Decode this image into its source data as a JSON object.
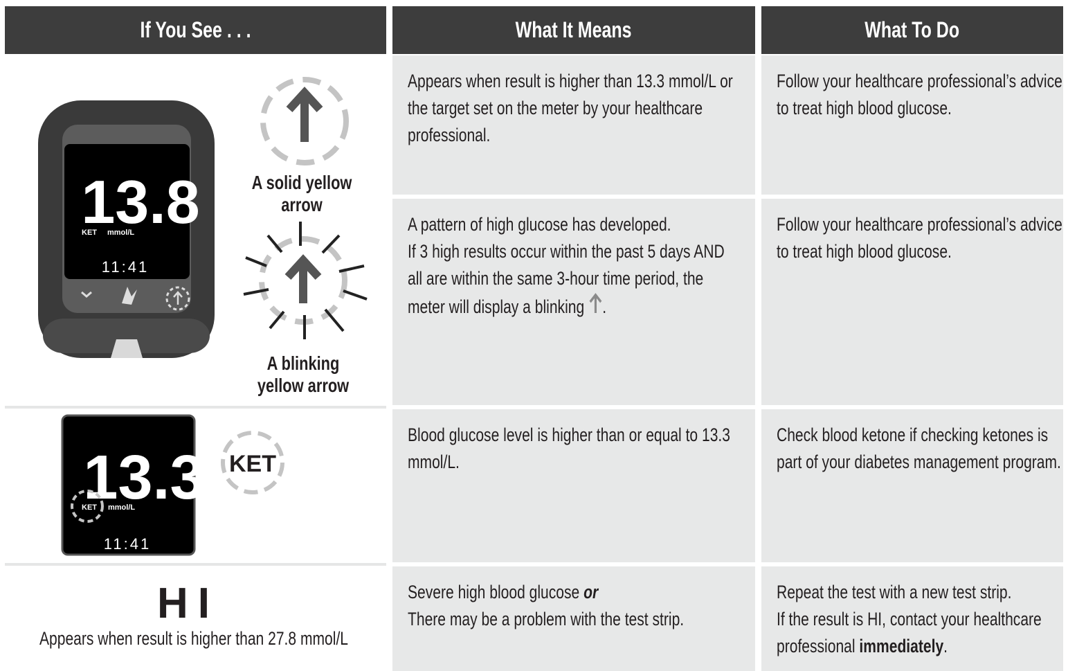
{
  "header": {
    "columns": [
      "If You See . . .",
      "What It Means",
      "What To Do"
    ]
  },
  "rows": [
    {
      "see": {
        "display": {
          "reading": "13.8",
          "ket": "KET",
          "unit": "mmol/L",
          "time": "11:41"
        },
        "labels": [
          "A solid yellow arrow",
          "A blinking yellow arrow"
        ]
      },
      "means": "Appears when result is higher than 13.3 mmol/L or the target set on the meter by your healthcare professional.",
      "todo": "Follow your healthcare professional’s advice to treat high blood glucose."
    },
    {
      "means": {
        "line1": "A pattern of high glucose has developed.",
        "line2": "If 3 high results occur within the past 5 days AND all are within the same 3-hour time period, the meter will display a blinking",
        "end": "."
      },
      "todo": "Follow your healthcare professional’s advice to treat high blood glucose."
    },
    {
      "see": {
        "display": {
          "reading": "13.3",
          "ket": "KET",
          "unit": "mmol/L",
          "time": "11:41"
        },
        "badge": "KET"
      },
      "means": "Blood glucose level is higher than or equal to 13.3 mmol/L.",
      "todo": "Check blood ketone if checking ketones is part of your diabetes management program."
    },
    {
      "see": {
        "code": "HI",
        "caption": "Appears when result is higher than 27.8 mmol/L"
      },
      "means": {
        "text": "Severe high blood glucose",
        "emphasis": "or",
        "line2": "There may be a problem with the test strip."
      },
      "todo": {
        "line1": "Repeat the test with a new test strip.",
        "line2": "If the result is HI, contact your healthcare professional",
        "emphasis": "immediately",
        "end": "."
      }
    }
  ]
}
